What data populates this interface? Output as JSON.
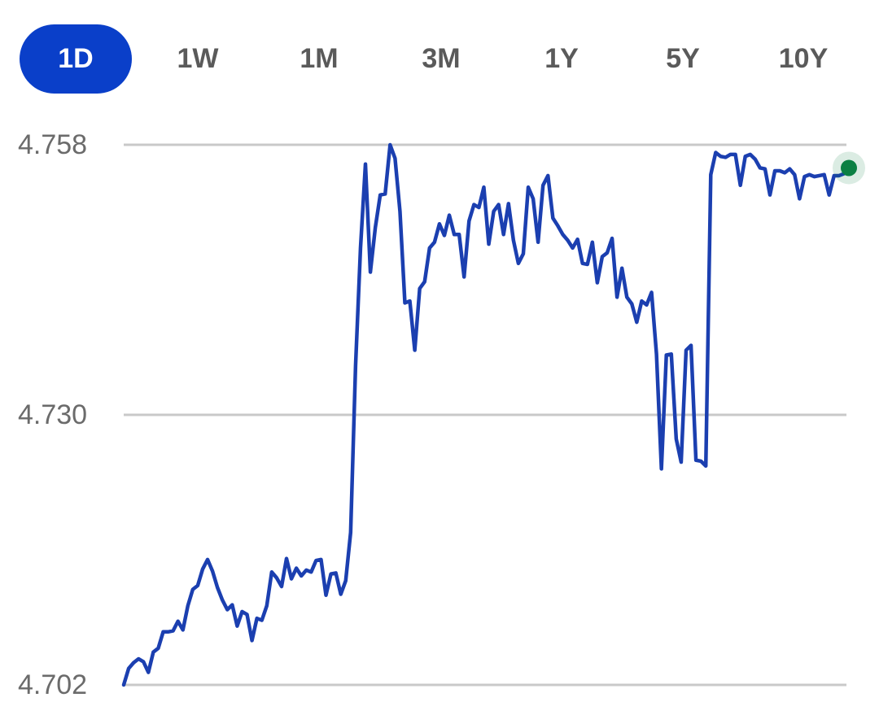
{
  "tabs": [
    "1D",
    "1W",
    "1M",
    "3M",
    "1Y",
    "5Y",
    "10Y"
  ],
  "chart_data": {
    "type": "line",
    "values": [
      4.702,
      4.7037,
      4.7043,
      4.7047,
      4.7044,
      4.7033,
      4.7054,
      4.7058,
      4.7075,
      4.7075,
      4.7076,
      4.7086,
      4.7077,
      4.7102,
      4.7119,
      4.7123,
      4.714,
      4.715,
      4.7138,
      4.7121,
      4.7108,
      4.7098,
      4.7103,
      4.7081,
      4.7096,
      4.7093,
      4.7066,
      4.7089,
      4.7087,
      4.7102,
      4.7137,
      4.7131,
      4.7122,
      4.7151,
      4.713,
      4.7141,
      4.7133,
      4.7139,
      4.7137,
      4.7149,
      4.715,
      4.7113,
      4.7135,
      4.7136,
      4.7114,
      4.7128,
      4.7178,
      4.7351,
      4.7473,
      4.756,
      4.7448,
      4.7494,
      4.7528,
      4.7529,
      4.758,
      4.7566,
      4.7511,
      4.7416,
      4.7418,
      4.7367,
      4.7431,
      4.7438,
      4.7473,
      4.7479,
      4.7498,
      4.7486,
      4.7507,
      4.7487,
      4.7487,
      4.7443,
      4.7501,
      4.7518,
      4.7515,
      4.7536,
      4.7477,
      4.7511,
      4.7518,
      4.7487,
      4.7519,
      4.7481,
      4.7457,
      4.7467,
      4.7536,
      4.7524,
      4.7479,
      4.7538,
      4.7548,
      4.7504,
      4.7496,
      4.7487,
      4.7481,
      4.7473,
      4.7482,
      4.7457,
      4.7456,
      4.7479,
      4.7437,
      4.7464,
      4.7468,
      4.7483,
      4.7422,
      4.7452,
      4.7422,
      4.7415,
      4.7396,
      4.7418,
      4.7414,
      4.7427,
      4.7363,
      4.7244,
      4.7362,
      4.7363,
      4.7275,
      4.7251,
      4.7367,
      4.7372,
      4.7253,
      4.7252,
      4.7247,
      4.7549,
      4.7572,
      4.7568,
      4.7567,
      4.757,
      4.757,
      4.7538,
      4.7568,
      4.757,
      4.7565,
      4.7556,
      4.7555,
      4.7528,
      4.7553,
      4.7553,
      4.7551,
      4.7555,
      4.7549,
      4.7524,
      4.7547,
      4.7549,
      4.7547,
      4.7548,
      4.7549,
      4.7528,
      4.7548,
      4.7548,
      4.755,
      4.7556
    ],
    "color": "#1b3fb0",
    "last_point_color": "#0b8043",
    "ylim": [
      4.702,
      4.758
    ],
    "yticks": [
      4.702,
      {
        "value": 4.73,
        "label": "4.730"
      },
      4.758
    ],
    "grid": true
  }
}
